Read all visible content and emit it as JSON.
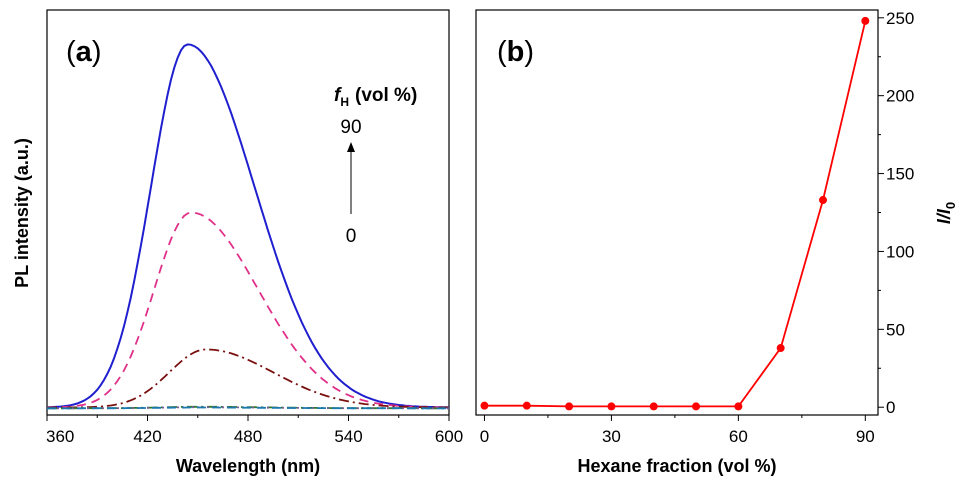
{
  "chart_data": [
    {
      "type": "line",
      "panel_label": "a",
      "xlabel": "Wavelength (nm)",
      "ylabel": "PL intensity (a.u.)",
      "xlim": [
        360,
        600
      ],
      "x_ticks": [
        "360",
        "420",
        "480",
        "540",
        "600"
      ],
      "y_ticks_shown": false,
      "legend": {
        "symbol": "f",
        "subscript": "H",
        "unit": "(vol %)",
        "top_value": "90",
        "bottom_value": "0"
      },
      "series": [
        {
          "style": "solid",
          "color": "#1f1fcf",
          "peak_x": 444,
          "peak_y": 245,
          "baseline": 1,
          "x": [
            360,
            380,
            400,
            420,
            444,
            460,
            480,
            500,
            520,
            540,
            560,
            580,
            600
          ],
          "y": [
            1,
            6,
            52,
            176,
            245,
            220,
            158,
            98,
            55,
            28,
            13,
            6,
            2
          ]
        },
        {
          "style": "dashed",
          "color": "#e0308a",
          "peak_x": 446,
          "peak_y": 132,
          "baseline": 1,
          "x": [
            360,
            380,
            400,
            420,
            446,
            460,
            480,
            500,
            520,
            540,
            560,
            580,
            600
          ],
          "y": [
            1,
            3,
            26,
            93,
            132,
            118,
            82,
            50,
            27,
            13,
            6,
            3,
            1
          ]
        },
        {
          "style": "dash-dot",
          "color": "#7a1010",
          "peak_x": 455,
          "peak_y": 40,
          "baseline": 1,
          "x": [
            360,
            380,
            400,
            420,
            455,
            480,
            500,
            520,
            540,
            560,
            580,
            600
          ],
          "y": [
            1,
            1.5,
            4,
            16,
            40,
            35,
            25,
            16,
            9,
            5,
            3,
            2
          ]
        },
        {
          "style": "dash-dot",
          "color": "#2d7a2d",
          "peak_x": 450,
          "peak_y": 1.5,
          "baseline": 0.5,
          "x": [
            360,
            420,
            450,
            500,
            600
          ],
          "y": [
            0.5,
            1.2,
            1.5,
            1.1,
            0.5
          ]
        },
        {
          "style": "dotted",
          "color": "#7a5aa0",
          "peak_x": 450,
          "peak_y": 1.2,
          "baseline": 0.5,
          "x": [
            360,
            420,
            450,
            500,
            600
          ],
          "y": [
            0.4,
            1.0,
            1.2,
            0.9,
            0.4
          ]
        },
        {
          "style": "dashed",
          "color": "#1a7ab0",
          "peak_x": 450,
          "peak_y": 1.0,
          "baseline": 0.5,
          "x": [
            360,
            420,
            450,
            500,
            600
          ],
          "y": [
            0.3,
            0.8,
            1.0,
            0.8,
            0.3
          ]
        }
      ]
    },
    {
      "type": "line",
      "panel_label": "b",
      "xlabel": "Hexane fraction (vol %)",
      "ylabel_main": "I",
      "ylabel_slash": "/",
      "ylabel_den": "I",
      "ylabel_sub": "0",
      "xlim": [
        -2,
        93
      ],
      "ylim": [
        -5,
        255
      ],
      "x_ticks": [
        "0",
        "30",
        "60",
        "90"
      ],
      "y_ticks": [
        "0",
        "50",
        "100",
        "150",
        "200",
        "250"
      ],
      "y_axis_side": "right",
      "color": "#ff0000",
      "x": [
        0,
        10,
        20,
        30,
        40,
        50,
        60,
        70,
        80,
        90
      ],
      "y": [
        1,
        1,
        0.5,
        0.5,
        0.5,
        0.5,
        0.5,
        38,
        133,
        248
      ]
    }
  ]
}
